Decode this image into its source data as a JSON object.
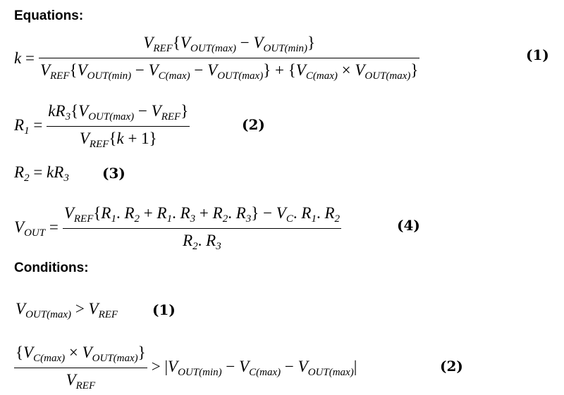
{
  "headings": {
    "equations": "Equations:",
    "conditions": "Conditions:"
  },
  "equations": [
    {
      "lhs": [
        {
          "i": "k"
        },
        " = "
      ],
      "num": [
        {
          "v": "V",
          "s": "REF"
        },
        "{",
        {
          "v": "V",
          "s": "OUT(max)"
        },
        " − ",
        {
          "v": "V",
          "s": "OUT(min)"
        },
        "}"
      ],
      "den": [
        {
          "v": "V",
          "s": "REF"
        },
        "{",
        {
          "v": "V",
          "s": "OUT(min)"
        },
        " − ",
        {
          "v": "V",
          "s": "C(max)"
        },
        " − ",
        {
          "v": "V",
          "s": "OUT(max)"
        },
        "}",
        " + ",
        "{",
        {
          "v": "V",
          "s": "C(max)"
        },
        " × ",
        {
          "v": "V",
          "s": "OUT(max)"
        },
        "}"
      ],
      "label": "(1)"
    },
    {
      "lhs": [
        {
          "v": "R",
          "s": "1"
        },
        " ="
      ],
      "num": [
        {
          "i": "k"
        },
        {
          "v": "R",
          "s": "3"
        },
        "{",
        {
          "v": "V",
          "s": "OUT(max)"
        },
        " − ",
        {
          "v": "V",
          "s": "REF"
        },
        "}"
      ],
      "den": [
        {
          "v": "V",
          "s": "REF"
        },
        "{",
        {
          "i": "k"
        },
        " + 1}"
      ],
      "label": "(2)"
    },
    {
      "lhs": [
        {
          "v": "R",
          "s": "2"
        },
        " = ",
        {
          "i": "k"
        },
        {
          "v": "R",
          "s": "3"
        }
      ],
      "label": "(3)"
    },
    {
      "lhs": [
        {
          "v": "V",
          "s": "OUT"
        },
        " = "
      ],
      "num": [
        {
          "v": "V",
          "s": "REF"
        },
        "{",
        {
          "v": "R",
          "s": "1"
        },
        ". ",
        {
          "v": "R",
          "s": "2"
        },
        " + ",
        {
          "v": "R",
          "s": "1"
        },
        ". ",
        {
          "v": "R",
          "s": "3"
        },
        " + ",
        {
          "v": "R",
          "s": "2"
        },
        ". ",
        {
          "v": "R",
          "s": "3"
        },
        "}",
        " − ",
        {
          "v": "V",
          "s": "C"
        },
        ". ",
        {
          "v": "R",
          "s": "1"
        },
        ". ",
        {
          "v": "R",
          "s": "2"
        }
      ],
      "den": [
        {
          "v": "R",
          "s": "2"
        },
        ". ",
        {
          "v": "R",
          "s": "3"
        }
      ],
      "label": "(4)"
    }
  ],
  "conditions": [
    {
      "lhs": [
        {
          "v": "V",
          "s": "OUT(max)"
        },
        " > ",
        {
          "v": "V",
          "s": "REF"
        }
      ],
      "label": "(1)"
    },
    {
      "num": [
        "{",
        {
          "v": "V",
          "s": "C(max)"
        },
        " × ",
        {
          "v": "V",
          "s": "OUT(max)"
        },
        "}"
      ],
      "den": [
        {
          "v": "V",
          "s": "REF"
        }
      ],
      "rhs": [
        " > ",
        "|",
        {
          "v": "V",
          "s": "OUT(min)"
        },
        " − ",
        {
          "v": "V",
          "s": "C(max)"
        },
        " − ",
        {
          "v": "V",
          "s": "OUT(max)"
        },
        "|"
      ],
      "label": "(2)"
    }
  ]
}
